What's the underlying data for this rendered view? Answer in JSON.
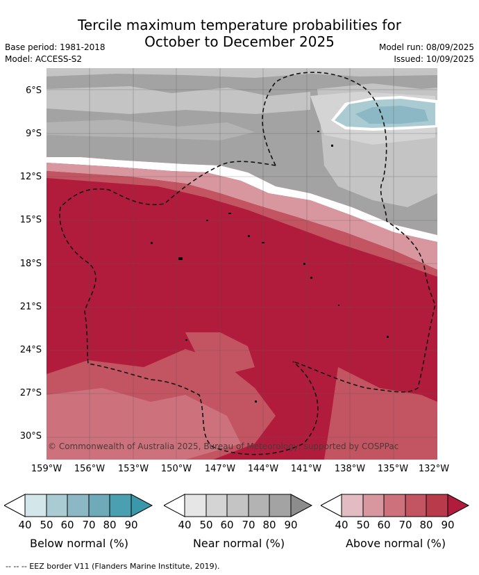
{
  "title": {
    "line1": "Tercile maximum temperature probabilities for",
    "line2": "October to December 2025"
  },
  "meta_left": {
    "base_period": "Base period: 1981-2018",
    "model": "Model: ACCESS-S2"
  },
  "meta_right": {
    "model_run": "Model run: 08/09/2025",
    "issued": "Issued: 10/09/2025"
  },
  "lat_labels": [
    "6°S",
    "9°S",
    "12°S",
    "15°S",
    "18°S",
    "21°S",
    "24°S",
    "27°S",
    "30°S"
  ],
  "lon_labels": [
    "159°W",
    "156°W",
    "153°W",
    "150°W",
    "147°W",
    "144°W",
    "141°W",
    "138°W",
    "135°W",
    "132°W"
  ],
  "copyright": "© Commonwealth of Australia 2025, Bureau of Meteorology, supported by COSPPac",
  "colorbars": [
    {
      "label": "Below normal (%)",
      "ticks": [
        "40",
        "50",
        "60",
        "70",
        "80",
        "90"
      ],
      "colors": [
        "#d3e6ea",
        "#abcbd2",
        "#8bb8c4",
        "#6eaab8",
        "#4a9fb0"
      ]
    },
    {
      "label": "Near normal (%)",
      "ticks": [
        "40",
        "50",
        "60",
        "70",
        "80",
        "90"
      ],
      "colors": [
        "#e6e6e6",
        "#d4d4d4",
        "#c4c4c4",
        "#b3b3b3",
        "#a3a3a3"
      ]
    },
    {
      "label": "Above normal (%)",
      "ticks": [
        "40",
        "50",
        "60",
        "70",
        "80",
        "90"
      ],
      "colors": [
        "#e2bcc2",
        "#d8969e",
        "#cd727d",
        "#c35461",
        "#b73b4b"
      ]
    }
  ],
  "extend_colors": {
    "below_high": "#3a98ab",
    "near_high": "#8c8c8c",
    "above_high": "#b21c3c"
  },
  "footnote": "--  --  -- EEZ border V11 (Flanders Marine Institute, 2019).",
  "chart_data": {
    "type": "map",
    "region": {
      "lon": [
        -159,
        -132
      ],
      "lat": [
        -31.5,
        -4.5
      ]
    },
    "fields": {
      "below_normal": "small area 40-70% near 8°S 136-133°W",
      "near_normal": "gray band north of ~11-16°S, 40-80%",
      "above_normal": "most of domain south of ~12°S, up to >90%"
    }
  }
}
